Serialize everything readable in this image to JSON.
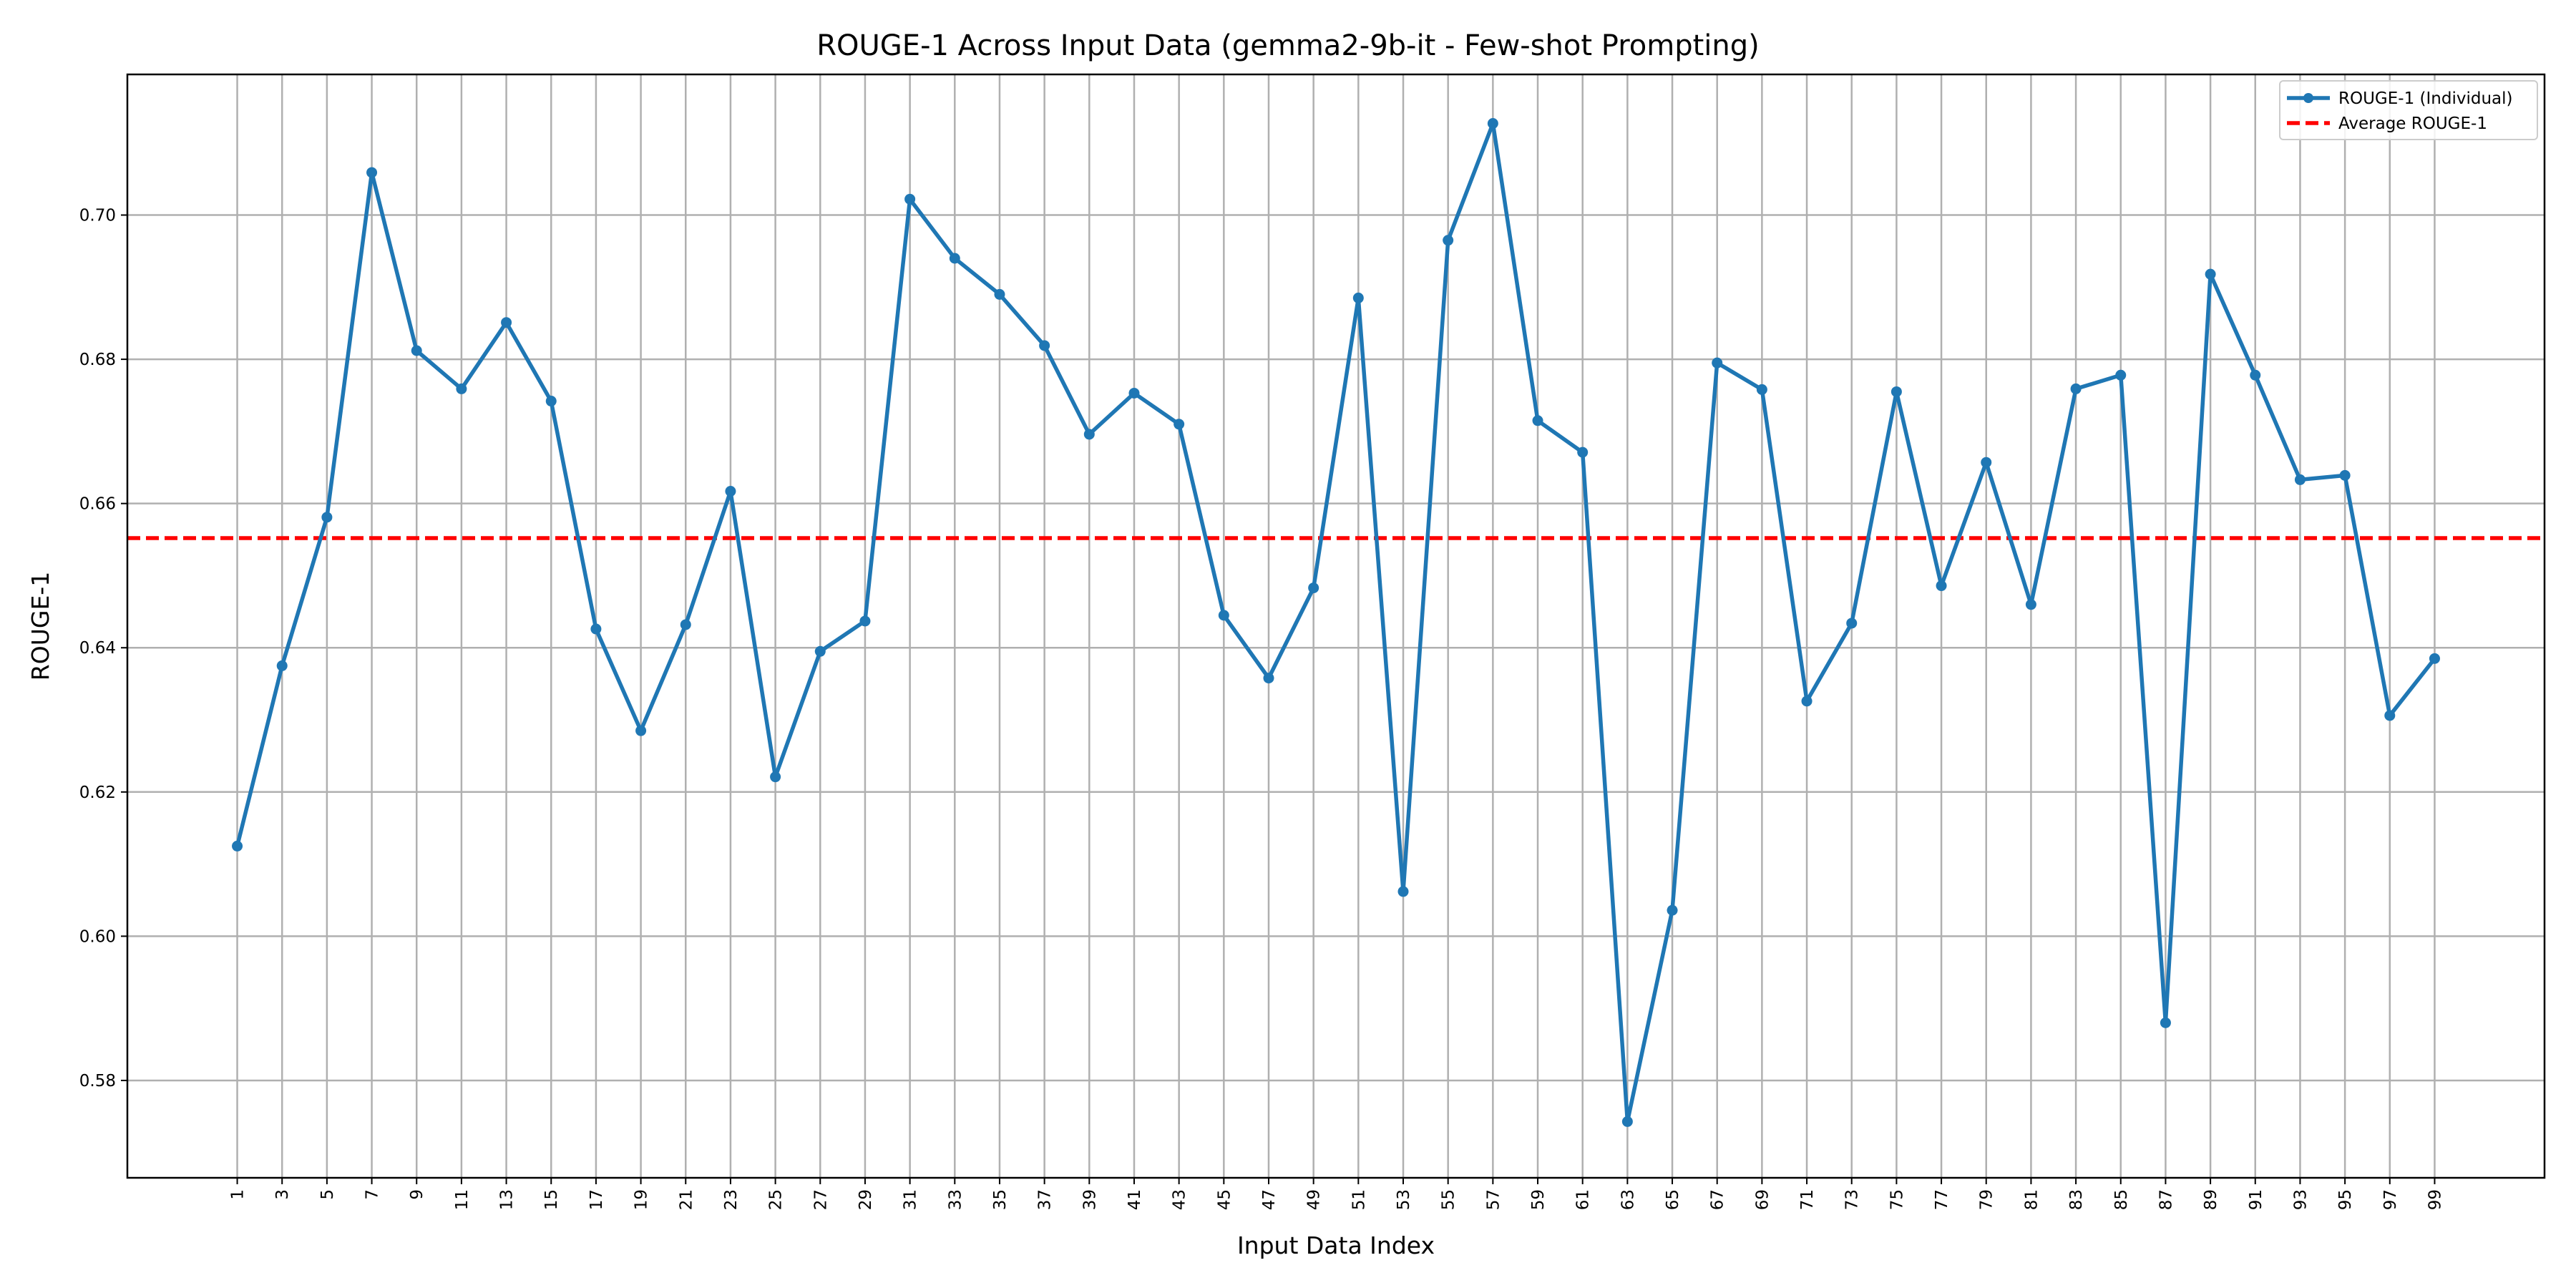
{
  "chart_data": {
    "type": "line",
    "title": "ROUGE-1 Across Input Data (gemma2-9b-it - Few-shot Prompting)",
    "xlabel": "Input Data Index",
    "ylabel": "ROUGE-1",
    "x": [
      1,
      3,
      5,
      7,
      9,
      11,
      13,
      15,
      17,
      19,
      21,
      23,
      25,
      27,
      29,
      31,
      33,
      35,
      37,
      39,
      41,
      43,
      45,
      47,
      49,
      51,
      53,
      55,
      57,
      59,
      61,
      63,
      65,
      67,
      69,
      71,
      73,
      75,
      77,
      79,
      81,
      83,
      85,
      87,
      89,
      91,
      93,
      95,
      97,
      99
    ],
    "x_tick_labels": [
      "1",
      "3",
      "5",
      "7",
      "9",
      "11",
      "13",
      "15",
      "17",
      "19",
      "21",
      "23",
      "25",
      "27",
      "29",
      "31",
      "33",
      "35",
      "37",
      "39",
      "41",
      "43",
      "45",
      "47",
      "49",
      "51",
      "53",
      "55",
      "57",
      "59",
      "61",
      "63",
      "65",
      "67",
      "69",
      "71",
      "73",
      "75",
      "77",
      "79",
      "81",
      "83",
      "85",
      "87",
      "89",
      "91",
      "93",
      "95",
      "97",
      "99"
    ],
    "xlim": [
      -3.9,
      103.9
    ],
    "ylim": [
      0.5665,
      0.7195
    ],
    "y_ticks": [
      0.58,
      0.6,
      0.62,
      0.64,
      0.66,
      0.68,
      0.7
    ],
    "y_tick_labels": [
      "0.58",
      "0.60",
      "0.62",
      "0.64",
      "0.66",
      "0.68",
      "0.70"
    ],
    "grid": true,
    "legend_position": "top-right",
    "series": [
      {
        "name": "ROUGE-1 (Individual)",
        "color": "#1f77b4",
        "style": "solid-with-markers",
        "values": [
          0.6125,
          0.6375,
          0.6581,
          0.7059,
          0.6812,
          0.6759,
          0.6851,
          0.6742,
          0.6426,
          0.6285,
          0.6432,
          0.6617,
          0.6221,
          0.6395,
          0.6437,
          0.7022,
          0.694,
          0.689,
          0.6819,
          0.6696,
          0.6753,
          0.671,
          0.6445,
          0.6358,
          0.6483,
          0.6885,
          0.6062,
          0.6965,
          0.7127,
          0.6715,
          0.6671,
          0.5743,
          0.6036,
          0.6795,
          0.6758,
          0.6326,
          0.6434,
          0.6755,
          0.6486,
          0.6657,
          0.646,
          0.6759,
          0.6778,
          0.588,
          0.6918,
          0.6778,
          0.6633,
          0.6639,
          0.6306,
          0.6385
        ]
      },
      {
        "name": "Average ROUGE-1",
        "color": "#ff0000",
        "style": "dashed",
        "value": 0.6552
      }
    ]
  }
}
